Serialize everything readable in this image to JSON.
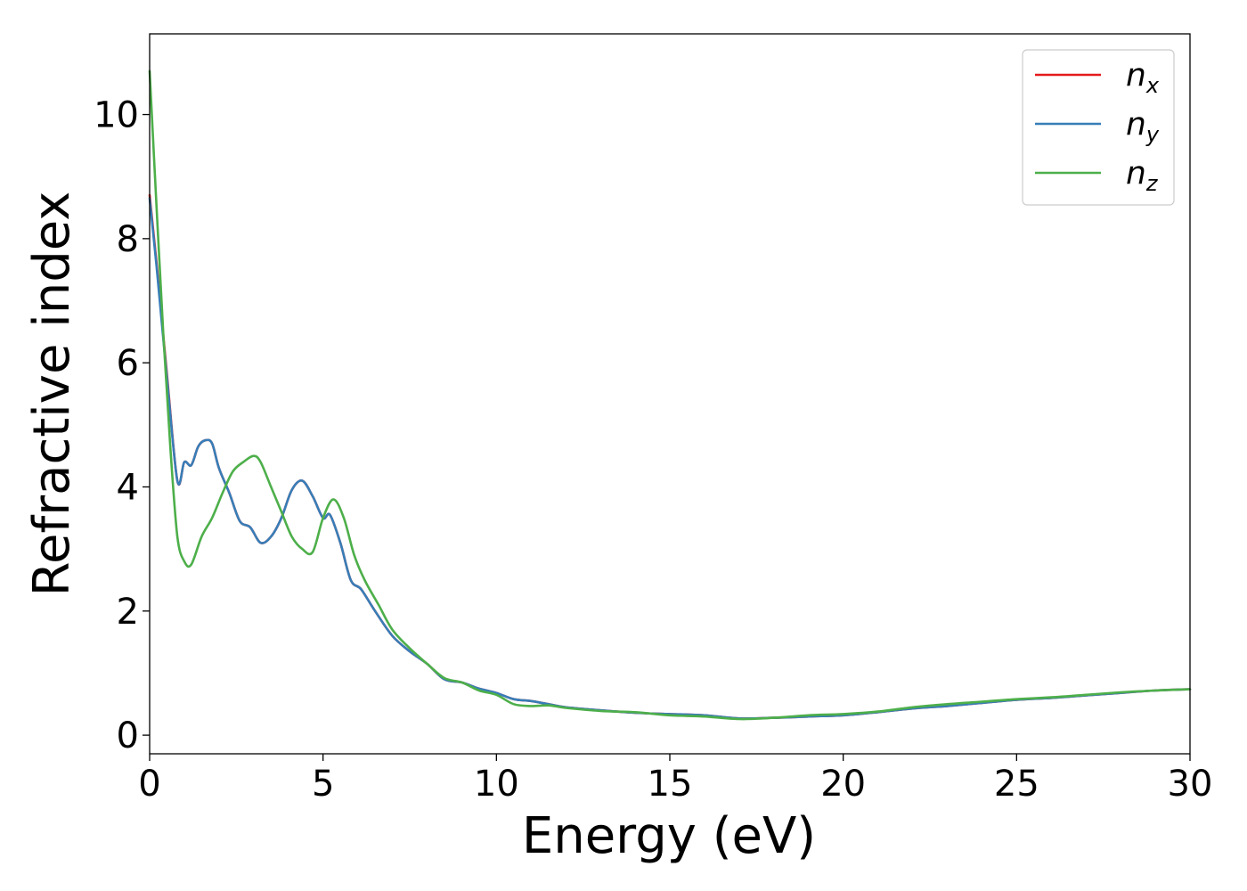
{
  "chart_data": {
    "type": "line",
    "title": "",
    "xlabel": "Energy (eV)",
    "ylabel": "Refractive index",
    "xlim": [
      0,
      30
    ],
    "ylim": [
      -0.3,
      11.3
    ],
    "xticks": [
      0,
      5,
      10,
      15,
      20,
      25,
      30
    ],
    "yticks": [
      0,
      2,
      4,
      6,
      8,
      10
    ],
    "grid": false,
    "legend": "top-right",
    "series": [
      {
        "name": "n",
        "subscript": "x",
        "color": "#e41a1c",
        "x": [
          0,
          0.2,
          0.5,
          0.8,
          1.0,
          1.2,
          1.4,
          1.6,
          1.8,
          2.0,
          2.3,
          2.6,
          2.9,
          3.2,
          3.5,
          3.8,
          4.1,
          4.4,
          4.7,
          5.0,
          5.2,
          5.5,
          5.8,
          6.1,
          6.5,
          7.0,
          7.5,
          8.0,
          8.5,
          9.0,
          9.5,
          10.0,
          10.5,
          11.0,
          11.5,
          12.0,
          13.0,
          14.0,
          15.0,
          16.0,
          17.0,
          18.0,
          19.0,
          20.0,
          21.0,
          22.0,
          23.0,
          24.0,
          25.0,
          26.0,
          27.0,
          28.0,
          29.0,
          30.0
        ],
        "values": [
          8.7,
          7.6,
          5.8,
          4.1,
          4.4,
          4.35,
          4.65,
          4.75,
          4.7,
          4.3,
          3.9,
          3.45,
          3.35,
          3.1,
          3.2,
          3.5,
          3.95,
          4.1,
          3.85,
          3.5,
          3.55,
          3.1,
          2.5,
          2.35,
          2.0,
          1.6,
          1.35,
          1.15,
          0.9,
          0.85,
          0.75,
          0.68,
          0.58,
          0.55,
          0.5,
          0.45,
          0.4,
          0.36,
          0.34,
          0.32,
          0.27,
          0.28,
          0.3,
          0.32,
          0.37,
          0.43,
          0.47,
          0.52,
          0.57,
          0.6,
          0.64,
          0.68,
          0.72,
          0.74
        ]
      },
      {
        "name": "n",
        "subscript": "y",
        "color": "#377eb8",
        "x": [
          0,
          0.2,
          0.5,
          0.8,
          1.0,
          1.2,
          1.4,
          1.6,
          1.8,
          2.0,
          2.3,
          2.6,
          2.9,
          3.2,
          3.5,
          3.8,
          4.1,
          4.4,
          4.7,
          5.0,
          5.2,
          5.5,
          5.8,
          6.1,
          6.5,
          7.0,
          7.5,
          8.0,
          8.5,
          9.0,
          9.5,
          10.0,
          10.5,
          11.0,
          11.5,
          12.0,
          13.0,
          14.0,
          15.0,
          16.0,
          17.0,
          18.0,
          19.0,
          20.0,
          21.0,
          22.0,
          23.0,
          24.0,
          25.0,
          26.0,
          27.0,
          28.0,
          29.0,
          30.0
        ],
        "values": [
          8.65,
          7.55,
          5.75,
          4.1,
          4.4,
          4.35,
          4.65,
          4.75,
          4.7,
          4.3,
          3.9,
          3.45,
          3.35,
          3.1,
          3.2,
          3.5,
          3.95,
          4.1,
          3.85,
          3.5,
          3.55,
          3.1,
          2.5,
          2.35,
          2.0,
          1.6,
          1.35,
          1.15,
          0.9,
          0.85,
          0.75,
          0.68,
          0.58,
          0.55,
          0.5,
          0.45,
          0.4,
          0.36,
          0.34,
          0.32,
          0.27,
          0.28,
          0.3,
          0.32,
          0.37,
          0.43,
          0.47,
          0.52,
          0.57,
          0.6,
          0.64,
          0.68,
          0.72,
          0.74
        ]
      },
      {
        "name": "n",
        "subscript": "z",
        "color": "#4daf4a",
        "x": [
          0,
          0.2,
          0.4,
          0.6,
          0.8,
          1.0,
          1.2,
          1.5,
          1.8,
          2.1,
          2.4,
          2.7,
          3.0,
          3.2,
          3.5,
          3.8,
          4.1,
          4.4,
          4.7,
          5.0,
          5.3,
          5.6,
          5.9,
          6.2,
          6.6,
          7.0,
          7.5,
          8.0,
          8.5,
          9.0,
          9.5,
          10.0,
          10.5,
          11.0,
          11.5,
          12.0,
          13.0,
          14.0,
          15.0,
          16.0,
          17.0,
          18.0,
          19.0,
          20.0,
          21.0,
          22.0,
          23.0,
          24.0,
          25.0,
          26.0,
          27.0,
          28.0,
          29.0,
          30.0
        ],
        "values": [
          10.7,
          8.5,
          6.4,
          4.6,
          3.2,
          2.8,
          2.75,
          3.2,
          3.5,
          3.9,
          4.25,
          4.4,
          4.5,
          4.4,
          4.0,
          3.6,
          3.2,
          3.0,
          2.95,
          3.5,
          3.8,
          3.5,
          2.9,
          2.5,
          2.1,
          1.7,
          1.4,
          1.15,
          0.92,
          0.85,
          0.72,
          0.65,
          0.5,
          0.47,
          0.48,
          0.44,
          0.39,
          0.37,
          0.32,
          0.3,
          0.26,
          0.28,
          0.32,
          0.34,
          0.38,
          0.45,
          0.5,
          0.54,
          0.58,
          0.61,
          0.65,
          0.69,
          0.72,
          0.74
        ]
      }
    ]
  }
}
